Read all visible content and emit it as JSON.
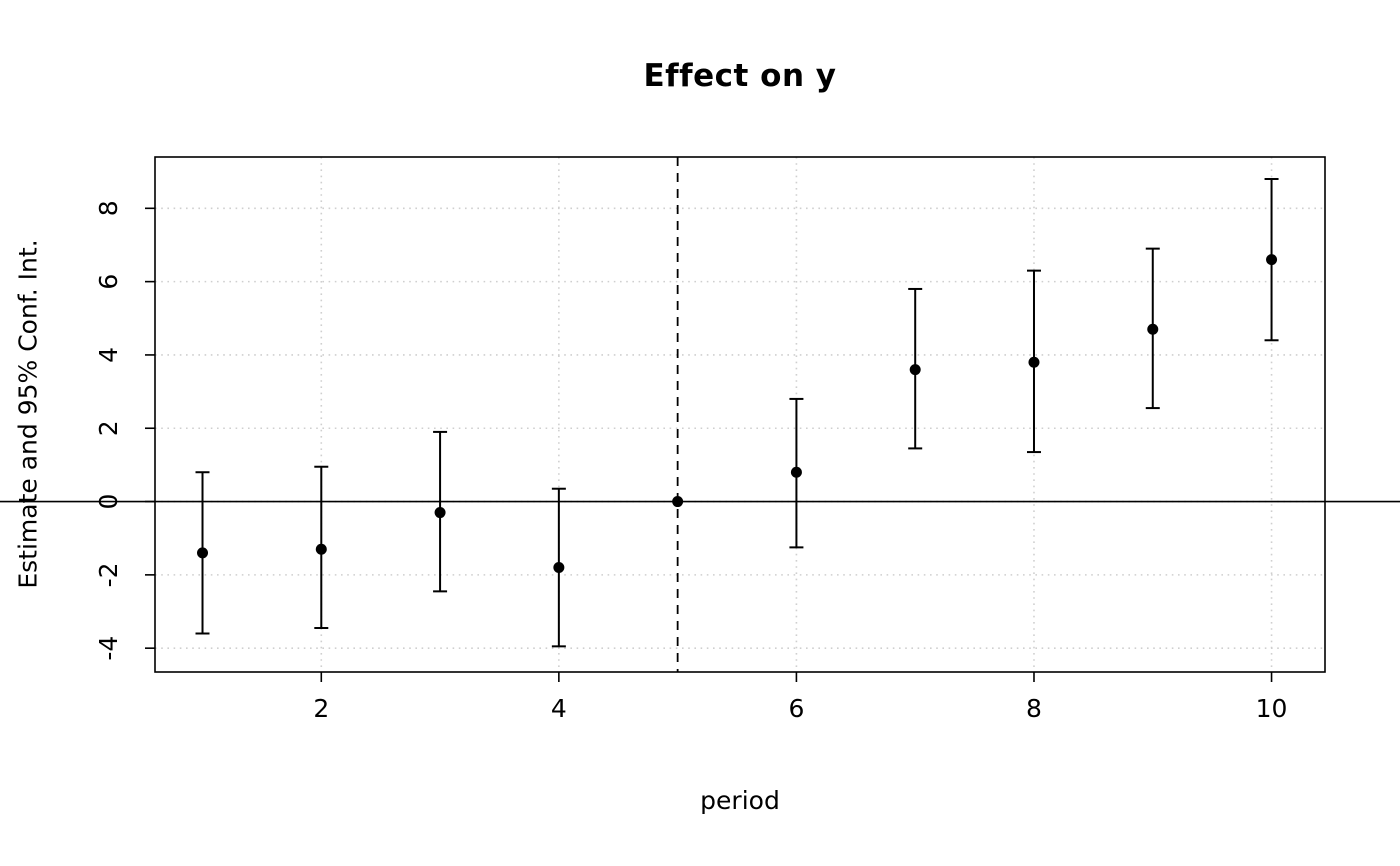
{
  "title": "Effect on y",
  "xlabel": "period",
  "ylabel": "Estimate and 95% Conf. Int.",
  "chart_data": {
    "type": "scatter",
    "title": "Effect on y",
    "xlabel": "period",
    "ylabel": "Estimate and 95% Conf. Int.",
    "x": [
      1,
      2,
      3,
      4,
      5,
      6,
      7,
      8,
      9,
      10
    ],
    "estimates": [
      -1.4,
      -1.3,
      -0.3,
      -1.8,
      0,
      0.8,
      3.6,
      3.8,
      4.7,
      6.6
    ],
    "ci_lower": [
      -3.6,
      -3.45,
      -2.45,
      -3.95,
      0,
      -1.25,
      1.45,
      1.35,
      2.55,
      4.4
    ],
    "ci_upper": [
      0.8,
      0.95,
      1.9,
      0.35,
      0,
      2.8,
      5.8,
      6.3,
      6.9,
      8.8
    ],
    "x_ticks": [
      2,
      4,
      6,
      8,
      10
    ],
    "y_ticks": [
      -4,
      -2,
      0,
      2,
      4,
      6,
      8
    ],
    "xlim": [
      0.6,
      10.45
    ],
    "ylim": [
      -4.65,
      9.4
    ],
    "reference_line_x": 5,
    "zero_line_y": 0,
    "grid": true,
    "grid_style": "dotted",
    "point_color": "#000000",
    "line_color": "#000000",
    "grid_color": "#cfcfcf",
    "background": "#ffffff"
  }
}
